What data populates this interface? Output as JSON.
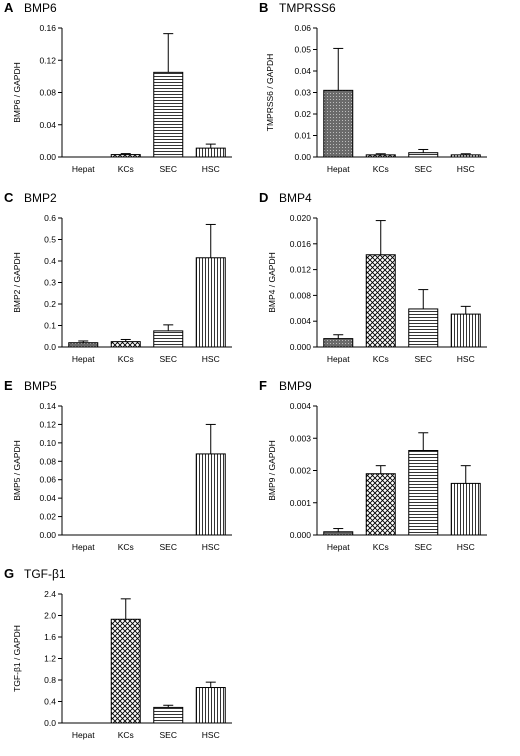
{
  "colors": {
    "axis": "#000000",
    "background": "#ffffff",
    "hepat_fill": "#6a6a6a"
  },
  "chart_data": [
    {
      "panel": "A",
      "title": "BMP6",
      "type": "bar",
      "ylabel": "BMP6 / GAPDH",
      "xlabel": "",
      "categories": [
        "Hepat",
        "KCs",
        "SEC",
        "HSC"
      ],
      "values": [
        0.0,
        0.003,
        0.105,
        0.011
      ],
      "errors": [
        0.0,
        0.0012,
        0.048,
        0.005
      ],
      "patterns": [
        "dotted-dark",
        "crosshatch",
        "horizontal",
        "vertical"
      ],
      "ylim": [
        0,
        0.16
      ],
      "yticks": [
        "0.00",
        "0.04",
        "0.08",
        "0.12",
        "0.16"
      ],
      "grid": false
    },
    {
      "panel": "B",
      "title": "TMPRSS6",
      "type": "bar",
      "ylabel": "TMPRSS6 / GAPDH",
      "xlabel": "",
      "categories": [
        "Hepat",
        "KCs",
        "SEC",
        "HSC"
      ],
      "values": [
        0.031,
        0.001,
        0.002,
        0.001
      ],
      "errors": [
        0.0195,
        0.0005,
        0.0015,
        0.0005
      ],
      "patterns": [
        "dotted-dark",
        "crosshatch",
        "horizontal",
        "vertical"
      ],
      "ylim": [
        0,
        0.06
      ],
      "yticks": [
        "0.00",
        "0.01",
        "0.02",
        "0.03",
        "0.04",
        "0.05",
        "0.06"
      ],
      "grid": false
    },
    {
      "panel": "C",
      "title": "BMP2",
      "type": "bar",
      "ylabel": "BMP2 / GAPDH",
      "xlabel": "",
      "categories": [
        "Hepat",
        "KCs",
        "SEC",
        "HSC"
      ],
      "values": [
        0.02,
        0.025,
        0.075,
        0.415
      ],
      "errors": [
        0.008,
        0.01,
        0.028,
        0.155
      ],
      "patterns": [
        "dotted-dark",
        "crosshatch",
        "horizontal",
        "vertical"
      ],
      "ylim": [
        0,
        0.6
      ],
      "yticks": [
        "0.0",
        "0.1",
        "0.2",
        "0.3",
        "0.4",
        "0.5",
        "0.6"
      ],
      "grid": false
    },
    {
      "panel": "D",
      "title": "BMP4",
      "type": "bar",
      "ylabel": "BMP4 / GAPDH",
      "xlabel": "",
      "categories": [
        "Hepat",
        "KCs",
        "SEC",
        "HSC"
      ],
      "values": [
        0.0013,
        0.0143,
        0.0059,
        0.0051
      ],
      "errors": [
        0.0006,
        0.0053,
        0.003,
        0.0012
      ],
      "patterns": [
        "dotted-dark",
        "crosshatch",
        "horizontal",
        "vertical"
      ],
      "ylim": [
        0,
        0.02
      ],
      "yticks": [
        "0.000",
        "0.004",
        "0.008",
        "0.012",
        "0.016",
        "0.020"
      ],
      "grid": false
    },
    {
      "panel": "E",
      "title": "BMP5",
      "type": "bar",
      "ylabel": "BMP5 / GAPDH",
      "xlabel": "",
      "categories": [
        "Hepat",
        "KCs",
        "SEC",
        "HSC"
      ],
      "values": [
        0.0,
        0.0,
        0.0,
        0.088
      ],
      "errors": [
        0.0,
        0.0,
        0.0,
        0.032
      ],
      "patterns": [
        "dotted-dark",
        "crosshatch",
        "horizontal",
        "vertical"
      ],
      "ylim": [
        0,
        0.14
      ],
      "yticks": [
        "0.00",
        "0.02",
        "0.04",
        "0.06",
        "0.08",
        "0.10",
        "0.12",
        "0.14"
      ],
      "grid": false
    },
    {
      "panel": "F",
      "title": "BMP9",
      "type": "bar",
      "ylabel": "BMP9 / GAPDH",
      "xlabel": "",
      "categories": [
        "Hepat",
        "KCs",
        "SEC",
        "HSC"
      ],
      "values": [
        0.0001,
        0.0019,
        0.00262,
        0.0016
      ],
      "errors": [
        0.0001,
        0.00025,
        0.00055,
        0.00055
      ],
      "patterns": [
        "dotted-dark",
        "crosshatch",
        "horizontal",
        "vertical"
      ],
      "ylim": [
        0,
        0.004
      ],
      "yticks": [
        "0.000",
        "0.001",
        "0.002",
        "0.003",
        "0.004"
      ],
      "grid": false
    },
    {
      "panel": "G",
      "title": "TGF-β1",
      "type": "bar",
      "ylabel": "TGF-β1 / GAPDH",
      "xlabel": "",
      "categories": [
        "Hepat",
        "KCs",
        "SEC",
        "HSC"
      ],
      "values": [
        0.0,
        1.93,
        0.29,
        0.66
      ],
      "errors": [
        0.0,
        0.38,
        0.04,
        0.1
      ],
      "patterns": [
        "dotted-dark",
        "crosshatch",
        "horizontal",
        "vertical"
      ],
      "ylim": [
        0,
        2.4
      ],
      "yticks": [
        "0.0",
        "0.4",
        "0.8",
        "1.2",
        "1.6",
        "2.0",
        "2.4"
      ],
      "grid": false
    }
  ]
}
